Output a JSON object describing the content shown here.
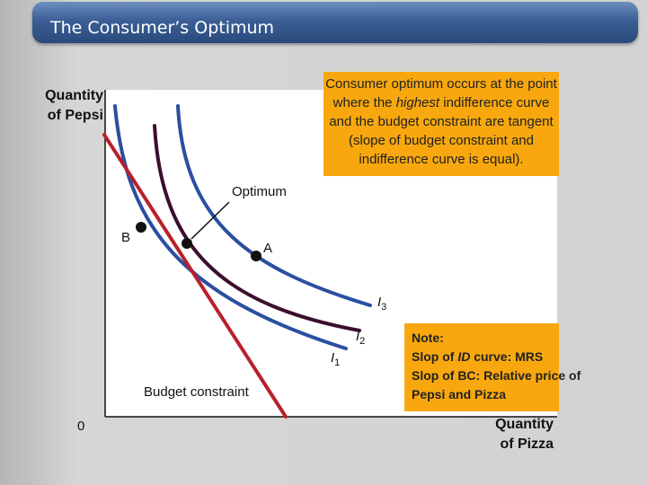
{
  "slide": {
    "title": "The Consumer’s Optimum"
  },
  "axes": {
    "ylabel_line1": "Quantity",
    "ylabel_line2": "of Pepsi",
    "xlabel_line1": "Quantity",
    "xlabel_line2": "of Pizza",
    "origin": "0"
  },
  "callout": {
    "line1": "Consumer optimum occurs at the point",
    "line2_pre": "where the ",
    "line2_em": "highest",
    "line2_post": " indifference curve",
    "line3": "and the budget constraint are tangent",
    "line4": "(slope of budget constraint and",
    "line5": "indifference curve is equal)."
  },
  "labels": {
    "optimum": "Optimum",
    "point_b": "B",
    "point_a": "A",
    "budget_constraint": "Budget constraint",
    "i3_letter": "I",
    "i3_sub": "3",
    "i2_letter": "I",
    "i2_sub": "2",
    "i1_letter": "I",
    "i1_sub": "1"
  },
  "note": {
    "line1": "Note:",
    "line2_pre": "Slop of ",
    "line2_em": "ID",
    "line2_post": " curve: MRS",
    "line3": "Slop of BC: Relative price of",
    "line4": "Pepsi and Pizza"
  },
  "colors": {
    "blue_curve": "#2a4fa0",
    "dark_curve": "#3b0f2e",
    "budget_line": "#b8202c",
    "callout_fill": "#f8a80e"
  }
}
